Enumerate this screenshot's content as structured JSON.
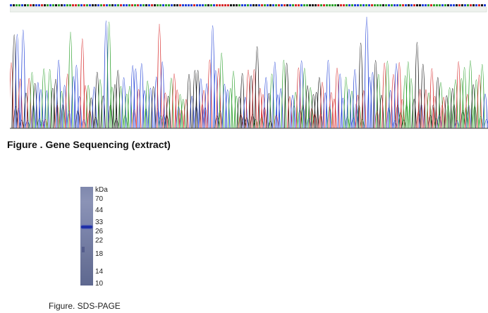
{
  "figure1": {
    "caption": "Figure . Gene Sequencing (extract)",
    "base_colors": {
      "A": "#2ca02c",
      "C": "#1f3fd6",
      "G": "#111111",
      "T": "#d62728"
    }
  },
  "figure2": {
    "caption": "Figure. SDS-PAGE",
    "unit_label": "kDa",
    "markers": [
      "70",
      "44",
      "33",
      "26",
      "22",
      "18",
      "14",
      "10"
    ],
    "band_kda": 30
  }
}
